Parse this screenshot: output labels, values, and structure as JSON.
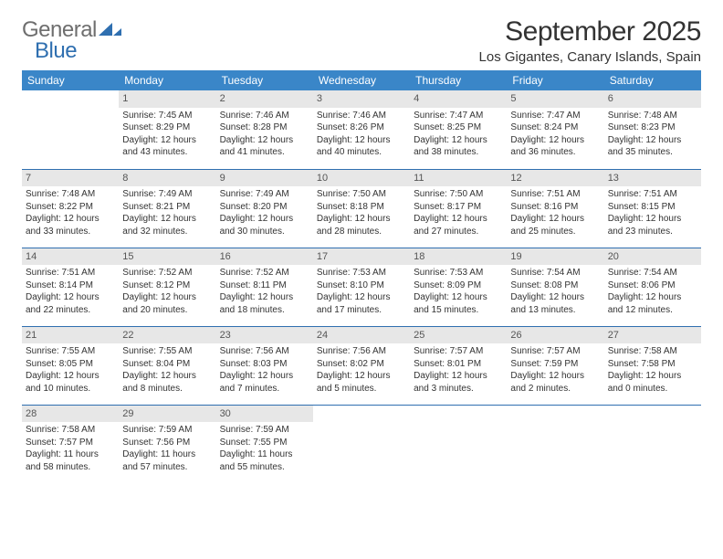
{
  "brand": {
    "part1": "General",
    "part2": "Blue"
  },
  "title": "September 2025",
  "location": "Los Gigantes, Canary Islands, Spain",
  "colors": {
    "header_bg": "#3a86c8",
    "header_fg": "#ffffff",
    "day_bg": "#e7e7e7",
    "rule": "#2f6fb0",
    "logo_gray": "#6e6e6e",
    "logo_blue": "#2f6fb0",
    "text": "#333333"
  },
  "weekdays": [
    "Sunday",
    "Monday",
    "Tuesday",
    "Wednesday",
    "Thursday",
    "Friday",
    "Saturday"
  ],
  "weeks": [
    [
      null,
      {
        "n": "1",
        "sr": "7:45 AM",
        "ss": "8:29 PM",
        "dl": "12 hours and 43 minutes."
      },
      {
        "n": "2",
        "sr": "7:46 AM",
        "ss": "8:28 PM",
        "dl": "12 hours and 41 minutes."
      },
      {
        "n": "3",
        "sr": "7:46 AM",
        "ss": "8:26 PM",
        "dl": "12 hours and 40 minutes."
      },
      {
        "n": "4",
        "sr": "7:47 AM",
        "ss": "8:25 PM",
        "dl": "12 hours and 38 minutes."
      },
      {
        "n": "5",
        "sr": "7:47 AM",
        "ss": "8:24 PM",
        "dl": "12 hours and 36 minutes."
      },
      {
        "n": "6",
        "sr": "7:48 AM",
        "ss": "8:23 PM",
        "dl": "12 hours and 35 minutes."
      }
    ],
    [
      {
        "n": "7",
        "sr": "7:48 AM",
        "ss": "8:22 PM",
        "dl": "12 hours and 33 minutes."
      },
      {
        "n": "8",
        "sr": "7:49 AM",
        "ss": "8:21 PM",
        "dl": "12 hours and 32 minutes."
      },
      {
        "n": "9",
        "sr": "7:49 AM",
        "ss": "8:20 PM",
        "dl": "12 hours and 30 minutes."
      },
      {
        "n": "10",
        "sr": "7:50 AM",
        "ss": "8:18 PM",
        "dl": "12 hours and 28 minutes."
      },
      {
        "n": "11",
        "sr": "7:50 AM",
        "ss": "8:17 PM",
        "dl": "12 hours and 27 minutes."
      },
      {
        "n": "12",
        "sr": "7:51 AM",
        "ss": "8:16 PM",
        "dl": "12 hours and 25 minutes."
      },
      {
        "n": "13",
        "sr": "7:51 AM",
        "ss": "8:15 PM",
        "dl": "12 hours and 23 minutes."
      }
    ],
    [
      {
        "n": "14",
        "sr": "7:51 AM",
        "ss": "8:14 PM",
        "dl": "12 hours and 22 minutes."
      },
      {
        "n": "15",
        "sr": "7:52 AM",
        "ss": "8:12 PM",
        "dl": "12 hours and 20 minutes."
      },
      {
        "n": "16",
        "sr": "7:52 AM",
        "ss": "8:11 PM",
        "dl": "12 hours and 18 minutes."
      },
      {
        "n": "17",
        "sr": "7:53 AM",
        "ss": "8:10 PM",
        "dl": "12 hours and 17 minutes."
      },
      {
        "n": "18",
        "sr": "7:53 AM",
        "ss": "8:09 PM",
        "dl": "12 hours and 15 minutes."
      },
      {
        "n": "19",
        "sr": "7:54 AM",
        "ss": "8:08 PM",
        "dl": "12 hours and 13 minutes."
      },
      {
        "n": "20",
        "sr": "7:54 AM",
        "ss": "8:06 PM",
        "dl": "12 hours and 12 minutes."
      }
    ],
    [
      {
        "n": "21",
        "sr": "7:55 AM",
        "ss": "8:05 PM",
        "dl": "12 hours and 10 minutes."
      },
      {
        "n": "22",
        "sr": "7:55 AM",
        "ss": "8:04 PM",
        "dl": "12 hours and 8 minutes."
      },
      {
        "n": "23",
        "sr": "7:56 AM",
        "ss": "8:03 PM",
        "dl": "12 hours and 7 minutes."
      },
      {
        "n": "24",
        "sr": "7:56 AM",
        "ss": "8:02 PM",
        "dl": "12 hours and 5 minutes."
      },
      {
        "n": "25",
        "sr": "7:57 AM",
        "ss": "8:01 PM",
        "dl": "12 hours and 3 minutes."
      },
      {
        "n": "26",
        "sr": "7:57 AM",
        "ss": "7:59 PM",
        "dl": "12 hours and 2 minutes."
      },
      {
        "n": "27",
        "sr": "7:58 AM",
        "ss": "7:58 PM",
        "dl": "12 hours and 0 minutes."
      }
    ],
    [
      {
        "n": "28",
        "sr": "7:58 AM",
        "ss": "7:57 PM",
        "dl": "11 hours and 58 minutes."
      },
      {
        "n": "29",
        "sr": "7:59 AM",
        "ss": "7:56 PM",
        "dl": "11 hours and 57 minutes."
      },
      {
        "n": "30",
        "sr": "7:59 AM",
        "ss": "7:55 PM",
        "dl": "11 hours and 55 minutes."
      },
      null,
      null,
      null,
      null
    ]
  ],
  "labels": {
    "sunrise": "Sunrise:",
    "sunset": "Sunset:",
    "daylight": "Daylight:"
  }
}
